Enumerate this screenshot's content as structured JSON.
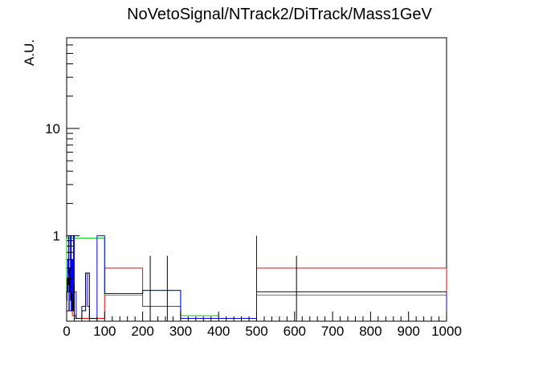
{
  "chart_data": {
    "type": "line",
    "title": "NoVetoSignal/NTrack2/DiTrack/Mass1GeV",
    "xlabel": "",
    "ylabel": "A.U.",
    "xlim": [
      0,
      1000
    ],
    "ylim": [
      0.16,
      70
    ],
    "yscale": "log",
    "x_ticks": [
      0,
      100,
      200,
      300,
      400,
      500,
      600,
      700,
      800,
      900,
      1000
    ],
    "x_tick_labels": [
      "0",
      "100",
      "200",
      "300",
      "400",
      "500",
      "600",
      "700",
      "800",
      "900",
      "1000"
    ],
    "y_ticks": [
      1,
      10
    ],
    "y_tick_labels": [
      "1",
      "10"
    ],
    "grid": false,
    "legend": "none",
    "series": [
      {
        "color": "#ff0000",
        "edges": [
          0,
          1,
          2,
          3,
          4,
          5,
          6,
          7,
          8,
          9,
          10,
          15,
          20,
          30,
          40,
          50,
          60,
          70,
          80,
          100,
          200,
          300,
          400,
          500,
          1000
        ],
        "values": [
          0.3,
          0.3,
          0.3,
          0.3,
          0.3,
          0.3,
          0.3,
          0.3,
          0.3,
          0.3,
          0.3,
          0.18,
          0.17,
          0.17,
          0.17,
          0.17,
          0.17,
          0.17,
          0.17,
          0.5,
          0.22,
          0.17,
          0.17,
          0.5
        ]
      },
      {
        "color": "#00cc00",
        "edges": [
          0,
          1,
          2,
          3,
          4,
          5,
          6,
          7,
          8,
          9,
          10,
          15,
          20,
          30,
          40,
          50,
          60,
          70,
          80,
          100,
          200,
          300,
          400,
          500,
          1000
        ],
        "values": [
          0.95,
          0.95,
          0.95,
          0.95,
          0.95,
          0.95,
          0.95,
          0.95,
          0.95,
          0.95,
          0.95,
          0.95,
          0.95,
          0.95,
          0.95,
          0.95,
          0.95,
          0.95,
          0.95,
          0.28,
          0.31,
          0.18,
          0.17,
          0.28
        ]
      },
      {
        "color": "#0000ff",
        "edges": [
          0,
          1,
          2,
          3,
          4,
          5,
          6,
          7,
          8,
          9,
          10,
          12,
          14,
          16,
          18,
          20,
          25,
          30,
          35,
          40,
          45,
          50,
          55,
          60,
          70,
          80,
          100,
          200,
          300,
          400,
          500,
          1000
        ],
        "values": [
          0.25,
          0.4,
          0.3,
          0.6,
          0.45,
          1.0,
          0.2,
          0.5,
          0.35,
          0.3,
          1.0,
          0.2,
          0.6,
          0.25,
          1.0,
          0.3,
          0.17,
          0.17,
          0.17,
          0.22,
          0.22,
          0.45,
          0.22,
          0.17,
          0.17,
          1.0,
          0.29,
          0.31,
          0.17,
          0.17,
          0.3
        ]
      },
      {
        "color": "#000000",
        "edges": [
          0,
          2,
          4,
          6,
          8,
          10,
          12,
          14,
          16,
          18,
          20,
          25,
          30,
          35,
          40,
          45,
          50,
          55,
          60,
          70,
          80,
          100,
          200,
          300,
          400,
          500,
          1000
        ],
        "values": [
          0.3,
          0.4,
          0.35,
          0.5,
          0.3,
          0.25,
          0.3,
          0.25,
          0.2,
          0.35,
          0.18,
          0.17,
          0.17,
          0.17,
          0.2,
          0.2,
          0.45,
          0.45,
          0.17,
          0.17,
          0.16,
          0.16,
          0.16,
          0.16,
          0.16,
          0.16
        ]
      }
    ],
    "spikes": [
      {
        "x": 220,
        "y": 0.65,
        "color": "#000000"
      },
      {
        "x": 265,
        "y": 0.65,
        "color": "#000000"
      },
      {
        "x": 500,
        "y": 1.0,
        "color": "#0000ff"
      },
      {
        "x": 605,
        "y": 0.65,
        "color": "#000000"
      }
    ]
  }
}
